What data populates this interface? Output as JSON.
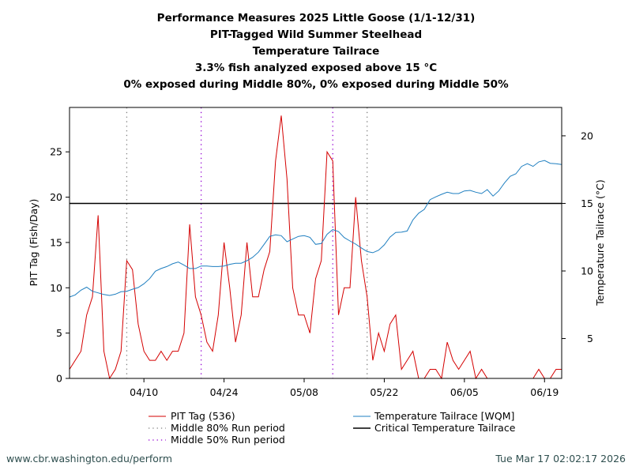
{
  "titles": [
    "Performance Measures 2025 Little Goose (1/1-12/31)",
    "PIT-Tagged Wild Summer Steelhead",
    "Temperature Tailrace",
    "3.3% fish analyzed exposed above 15 °C",
    "0% exposed during Middle 80%, 0% exposed during Middle 50%"
  ],
  "footer": {
    "left": "www.cbr.washington.edu/perform",
    "right": "Tue Mar 17 02:02:17 2026"
  },
  "chart_data": {
    "type": "line",
    "ylabel": "PIT Tag (Fish/Day)",
    "y2label": "Temperature Tailrace (°C)",
    "ylim": [
      0,
      29.9
    ],
    "y2lim": [
      2.05,
      22.1
    ],
    "yticks": [
      0,
      5,
      10,
      15,
      20,
      25
    ],
    "y2ticks": [
      5,
      10,
      15,
      20
    ],
    "xticks": [
      "04/10",
      "04/24",
      "05/08",
      "05/22",
      "06/05",
      "06/19"
    ],
    "grid": false,
    "legend_position": "bottom",
    "x": [
      "03/28",
      "03/29",
      "03/30",
      "03/31",
      "04/01",
      "04/02",
      "04/03",
      "04/04",
      "04/05",
      "04/06",
      "04/07",
      "04/08",
      "04/09",
      "04/10",
      "04/11",
      "04/12",
      "04/13",
      "04/14",
      "04/15",
      "04/16",
      "04/17",
      "04/18",
      "04/19",
      "04/20",
      "04/21",
      "04/22",
      "04/23",
      "04/24",
      "04/25",
      "04/26",
      "04/27",
      "04/28",
      "04/29",
      "04/30",
      "05/01",
      "05/02",
      "05/03",
      "05/04",
      "05/05",
      "05/06",
      "05/07",
      "05/08",
      "05/09",
      "05/10",
      "05/11",
      "05/12",
      "05/13",
      "05/14",
      "05/15",
      "05/16",
      "05/17",
      "05/18",
      "05/19",
      "05/20",
      "05/21",
      "05/22",
      "05/23",
      "05/24",
      "05/25",
      "05/26",
      "05/27",
      "05/28",
      "05/29",
      "05/30",
      "05/31",
      "06/01",
      "06/02",
      "06/03",
      "06/04",
      "06/05",
      "06/06",
      "06/07",
      "06/08",
      "06/09",
      "06/10",
      "06/11",
      "06/12",
      "06/13",
      "06/14",
      "06/15",
      "06/16",
      "06/17",
      "06/18",
      "06/19",
      "06/20",
      "06/21",
      "06/22"
    ],
    "series": [
      {
        "name": "PIT Tag (536)",
        "axis": "left",
        "color": "#d40000",
        "values": [
          1,
          2,
          3,
          7,
          9,
          18,
          3,
          0,
          1,
          3,
          13,
          12,
          6,
          3,
          2,
          2,
          3,
          2,
          3,
          3,
          5,
          17,
          9,
          7,
          4,
          3,
          7,
          15,
          10,
          4,
          7,
          15,
          9,
          9,
          12,
          14,
          24,
          29,
          22,
          10,
          7,
          7,
          5,
          11,
          13,
          25,
          24,
          7,
          10,
          10,
          20,
          13,
          9,
          2,
          5,
          3,
          6,
          7,
          1,
          2,
          3,
          0,
          0,
          1,
          1,
          0,
          4,
          2,
          1,
          2,
          3,
          0,
          1,
          0,
          0,
          0,
          0,
          0,
          0,
          0,
          0,
          0,
          1,
          0,
          0,
          1,
          1
        ]
      },
      {
        "name": "Temperature Tailrace [WQM]",
        "axis": "right",
        "color": "#1f7fc0",
        "values": [
          8.07,
          8.23,
          8.58,
          8.8,
          8.5,
          8.38,
          8.26,
          8.19,
          8.28,
          8.46,
          8.5,
          8.65,
          8.77,
          9.05,
          9.43,
          9.98,
          10.18,
          10.33,
          10.53,
          10.66,
          10.43,
          10.18,
          10.18,
          10.37,
          10.37,
          10.33,
          10.33,
          10.37,
          10.49,
          10.57,
          10.57,
          10.76,
          11.01,
          11.39,
          11.97,
          12.56,
          12.67,
          12.61,
          12.16,
          12.36,
          12.56,
          12.61,
          12.49,
          11.97,
          12.03,
          12.71,
          13.06,
          12.91,
          12.47,
          12.22,
          11.99,
          11.7,
          11.44,
          11.35,
          11.54,
          11.93,
          12.51,
          12.85,
          12.87,
          12.96,
          13.78,
          14.27,
          14.56,
          15.28,
          15.48,
          15.67,
          15.83,
          15.73,
          15.73,
          15.92,
          15.96,
          15.83,
          15.73,
          16.02,
          15.54,
          15.92,
          16.51,
          17.0,
          17.19,
          17.74,
          17.94,
          17.74,
          18.07,
          18.17,
          17.97,
          17.94,
          17.88
        ]
      }
    ],
    "critical": {
      "name": "Critical Temperature Tailrace",
      "value": 15,
      "axis": "right",
      "color": "#000000"
    },
    "periods": [
      {
        "name": "Middle 80% Run period",
        "color": "#808080",
        "start": "04/07",
        "end": "05/19"
      },
      {
        "name": "Middle 50% Run period",
        "color": "#9400d3",
        "start": "04/20",
        "end": "05/13"
      }
    ]
  }
}
